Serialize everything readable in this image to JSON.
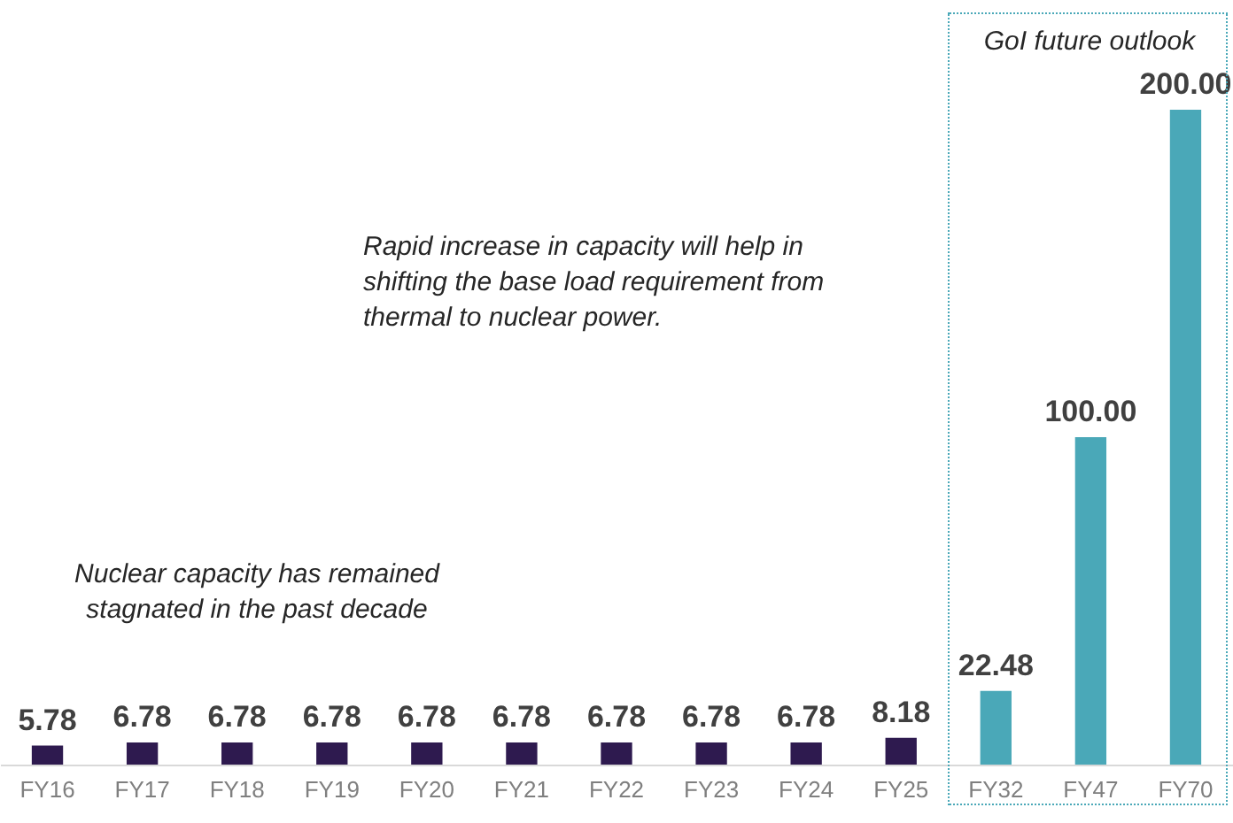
{
  "chart_data": {
    "type": "bar",
    "categories": [
      "FY16",
      "FY17",
      "FY18",
      "FY19",
      "FY20",
      "FY21",
      "FY22",
      "FY23",
      "FY24",
      "FY25",
      "FY32",
      "FY47",
      "FY70"
    ],
    "values": [
      5.78,
      6.78,
      6.78,
      6.78,
      6.78,
      6.78,
      6.78,
      6.78,
      6.78,
      8.18,
      22.48,
      100,
      200
    ],
    "colors": [
      "#2e1a4f",
      "#2e1a4f",
      "#2e1a4f",
      "#2e1a4f",
      "#2e1a4f",
      "#2e1a4f",
      "#2e1a4f",
      "#2e1a4f",
      "#2e1a4f",
      "#2e1a4f",
      "#4aa8b8",
      "#4aa8b8",
      "#4aa8b8"
    ],
    "value_labels": [
      "5.78",
      "6.78",
      "6.78",
      "6.78",
      "6.78",
      "6.78",
      "6.78",
      "6.78",
      "6.78",
      "8.18",
      "22.48",
      "100.00",
      "200.00"
    ],
    "annotations": [
      "Nuclear capacity has remained\nstagnated in the past decade",
      "Rapid increase in capacity will help in\nshifting the base load requirement from\nthermal to nuclear power.",
      "GoI future outlook"
    ]
  }
}
